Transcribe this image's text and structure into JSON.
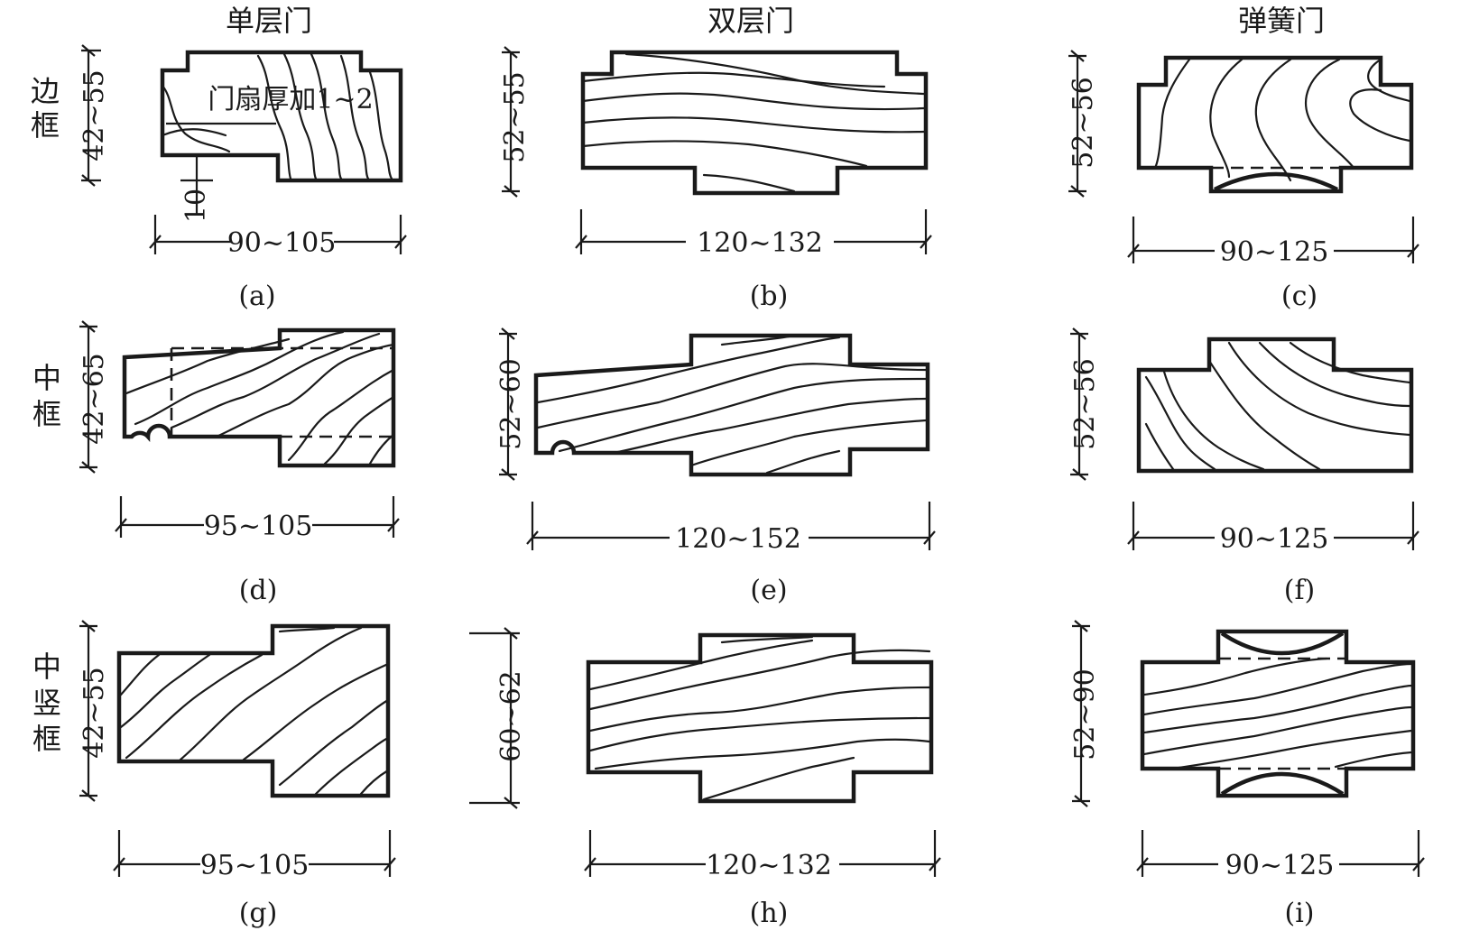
{
  "columns": {
    "single": "单层门",
    "double": "双层门",
    "spring": "弹簧门"
  },
  "rows": {
    "side_frame": [
      "边",
      "框"
    ],
    "middle_frame": [
      "中",
      "框"
    ],
    "middle_mullion": [
      "中",
      "竖",
      "框"
    ]
  },
  "panels": {
    "a": {
      "caption": "(a)",
      "width": "90~105",
      "height": "42~55",
      "note": "门扇厚加1~2",
      "rebate": "10"
    },
    "b": {
      "caption": "(b)",
      "width": "120~132",
      "height": "52~55"
    },
    "c": {
      "caption": "(c)",
      "width": "90~125",
      "height": "52~56"
    },
    "d": {
      "caption": "(d)",
      "width": "95~105",
      "height": "42~65"
    },
    "e": {
      "caption": "(e)",
      "width": "120~152",
      "height": "52~60"
    },
    "f": {
      "caption": "(f)",
      "width": "90~125",
      "height": "52~56"
    },
    "g": {
      "caption": "(g)",
      "width": "95~105",
      "height": "42~55"
    },
    "h": {
      "caption": "(h)",
      "width": "120~132",
      "height": "60~62"
    },
    "i": {
      "caption": "(i)",
      "width": "90~125",
      "height": "52~90"
    }
  }
}
